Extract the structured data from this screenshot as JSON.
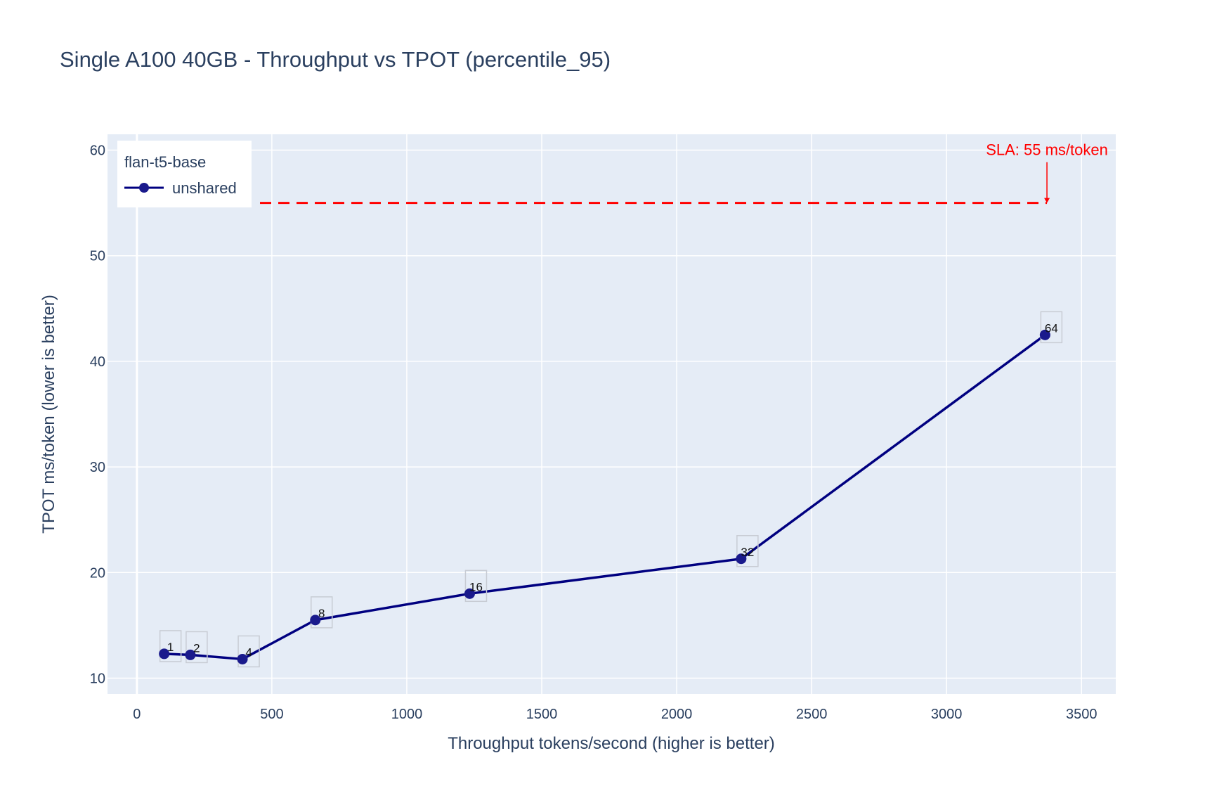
{
  "chart_data": {
    "type": "line",
    "title": "Single A100 40GB - Throughput vs TPOT (percentile_95)",
    "xlabel": "Throughput tokens/second (higher is better)",
    "ylabel": "TPOT ms/token (lower is better)",
    "xlim": [
      -109,
      3627
    ],
    "ylim": [
      8.5,
      61.5
    ],
    "xticks": [
      0,
      500,
      1000,
      1500,
      2000,
      2500,
      3000,
      3500
    ],
    "yticks": [
      10,
      20,
      30,
      40,
      50,
      60
    ],
    "xtick_labels": [
      "0",
      "500",
      "1000",
      "1500",
      "2000",
      "2500",
      "3000",
      "3500"
    ],
    "ytick_labels": [
      "10",
      "20",
      "30",
      "40",
      "50",
      "60"
    ],
    "grid": true,
    "legend": {
      "title": "flan-t5-base",
      "placement": "top-left"
    },
    "series": [
      {
        "name": "unshared",
        "color": "#000080",
        "x": [
          101,
          198,
          391,
          661,
          1233,
          2239,
          3365
        ],
        "y": [
          12.3,
          12.2,
          11.8,
          15.5,
          18.0,
          21.3,
          42.5
        ],
        "point_labels": [
          "1",
          "2",
          "4",
          "8",
          "16",
          "32",
          "64"
        ]
      }
    ],
    "annotations": [
      {
        "text": "SLA: 55 ms/token",
        "color": "#ff0000",
        "y": 55,
        "x_start": 456,
        "x_end": 3372,
        "line_style": "dashed"
      }
    ],
    "colors": {
      "plot_bg": "#e5ecf6",
      "grid": "#ffffff",
      "text": "#2a3f5f",
      "sla": "#ff0000",
      "series": "#000080",
      "marker": "#1a1a8c"
    }
  }
}
